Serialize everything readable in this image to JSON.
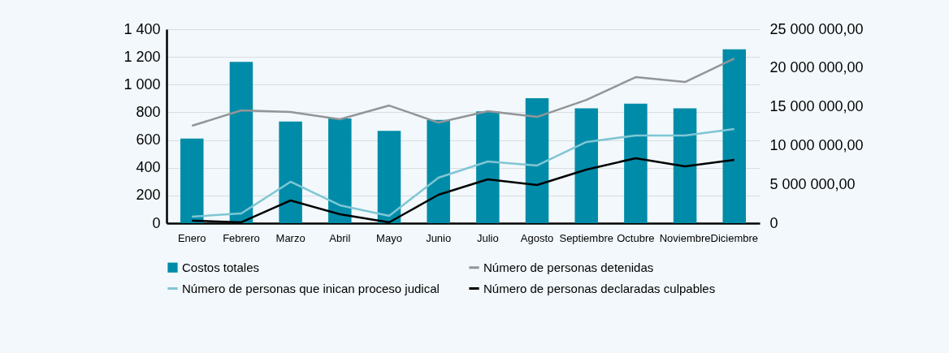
{
  "chart_data": {
    "type": "bar",
    "categories": [
      "Enero",
      "Febrero",
      "Marzo",
      "Abril",
      "Mayo",
      "Junio",
      "Julio",
      "Agosto",
      "Septiembre",
      "Octubre",
      "Noviembre",
      "Diciembre"
    ],
    "series": [
      {
        "name": "Costos totales",
        "axis": "y2",
        "color": "#008ca8",
        "values": [
          10900000,
          20800000,
          13100000,
          13500000,
          11900000,
          13300000,
          14400000,
          16100000,
          14800000,
          15400000,
          14800000,
          22400000
        ]
      },
      {
        "name": "Número de personas detenidas",
        "type": "line",
        "color": "#939598",
        "values": [
          703,
          814,
          803,
          750,
          849,
          726,
          808,
          767,
          890,
          1054,
          1019,
          1189
        ]
      },
      {
        "name": "Número de personas que inican proceso judical",
        "type": "line",
        "color": "#7fc6d4",
        "values": [
          47,
          70,
          299,
          129,
          53,
          328,
          445,
          416,
          586,
          633,
          633,
          680
        ]
      },
      {
        "name": "Número de personas declaradas culpables",
        "type": "line",
        "color": "#000000",
        "values": [
          18,
          6,
          164,
          64,
          6,
          205,
          316,
          275,
          387,
          469,
          410,
          457
        ]
      }
    ],
    "ylim": [
      0,
      1400
    ],
    "yticks": [
      0,
      {
        "value": 200,
        "label": "200"
      },
      {
        "value": 400,
        "label": "400"
      },
      {
        "value": 600,
        "label": "600"
      },
      {
        "value": 800,
        "label": "800"
      },
      {
        "value": 1000,
        "label": "1 000"
      },
      {
        "value": 1200,
        "label": "1 200"
      },
      {
        "value": 1400,
        "label": "1 400"
      }
    ],
    "y2lim": [
      0,
      25000000
    ],
    "y2ticks": [
      0,
      {
        "value": 5000000,
        "label": "5 000 000,00"
      },
      {
        "value": 10000000,
        "label": "10 000 000,00"
      },
      {
        "value": 15000000,
        "label": "15 000 000,00"
      },
      {
        "value": 20000000,
        "label": "20 000 000,00"
      },
      {
        "value": 25000000,
        "label": "25 000 000,00"
      }
    ],
    "grid": "y",
    "legend": "bottom"
  }
}
